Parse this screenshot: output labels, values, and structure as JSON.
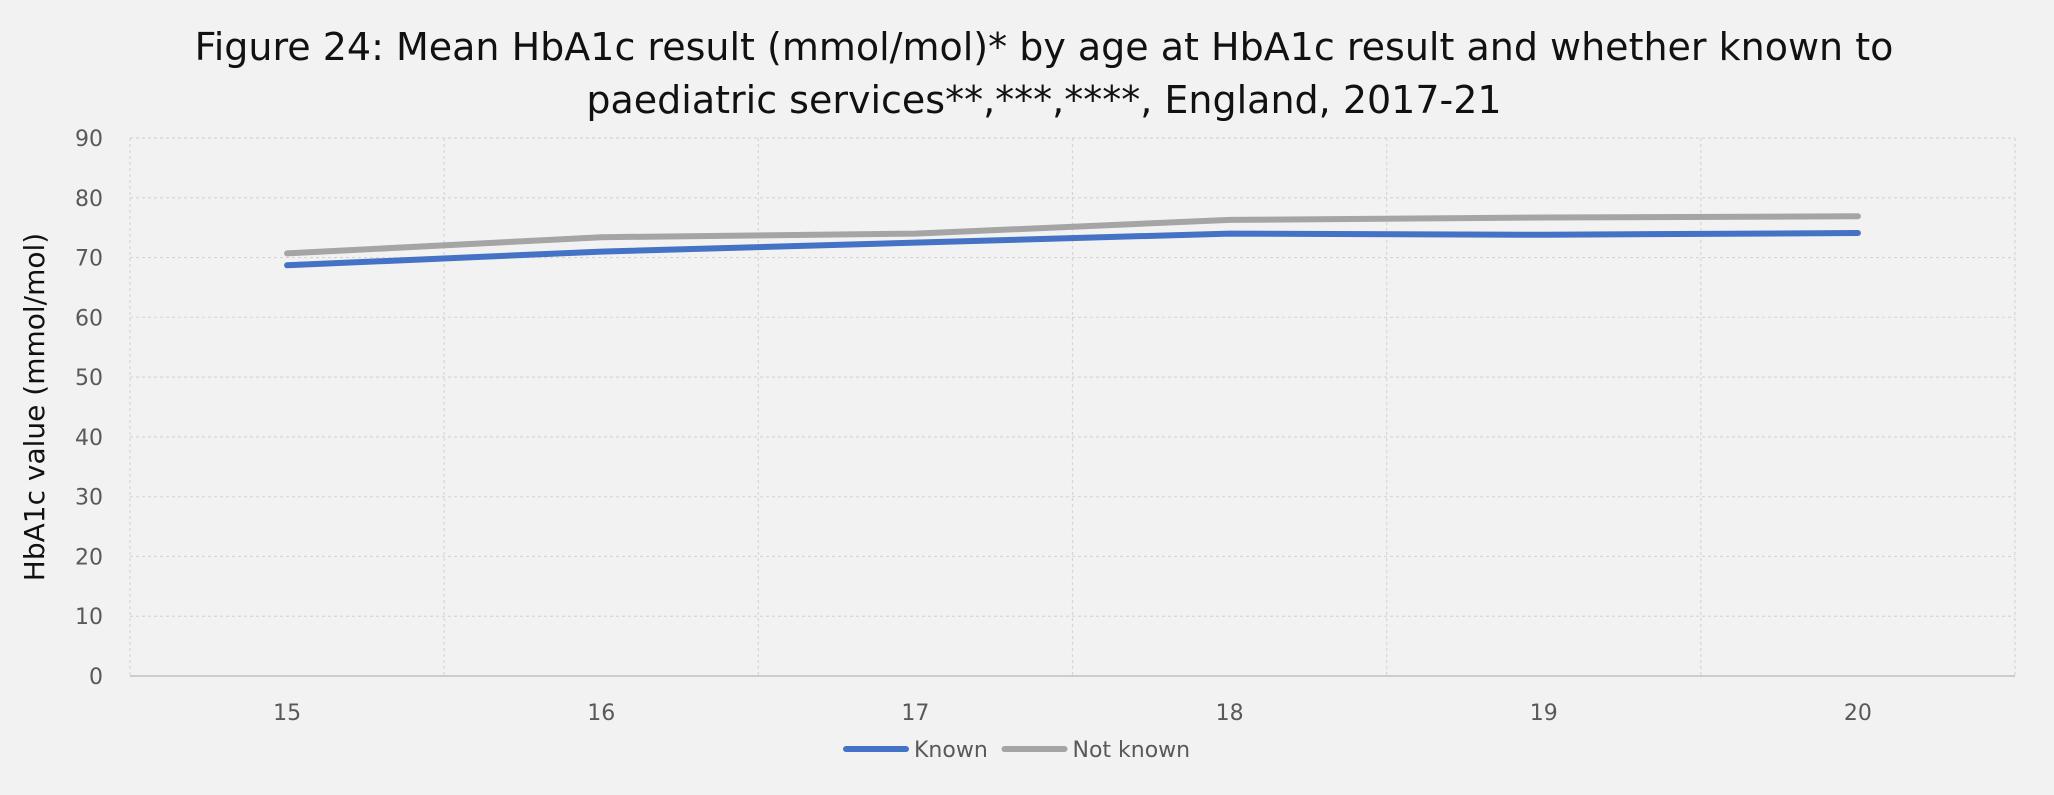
{
  "chart_data": {
    "type": "line",
    "title": "Figure 24: Mean HbA1c result (mmol/mol)* by age at HbA1c result and whether known to paediatric services**,***,****, England, 2017-21",
    "title_lines": [
      "Figure 24: Mean HbA1c result (mmol/mol)* by age at HbA1c result and whether known to",
      "paediatric services**,***,****, England, 2017-21"
    ],
    "xlabel": "",
    "ylabel": "HbA1c value (mmol/mol)",
    "x": [
      15,
      16,
      17,
      18,
      19,
      20
    ],
    "ylim": [
      0,
      90
    ],
    "yticks": [
      0,
      10,
      20,
      30,
      40,
      50,
      60,
      70,
      80,
      90
    ],
    "grid": true,
    "legend_position": "bottom",
    "series": [
      {
        "name": "Known",
        "color": "#4472c4",
        "values": [
          68.7,
          71.0,
          72.5,
          74.0,
          73.8,
          74.1
        ]
      },
      {
        "name": "Not known",
        "color": "#a5a5a5",
        "values": [
          70.7,
          73.4,
          74.0,
          76.3,
          76.7,
          76.9
        ]
      }
    ]
  }
}
